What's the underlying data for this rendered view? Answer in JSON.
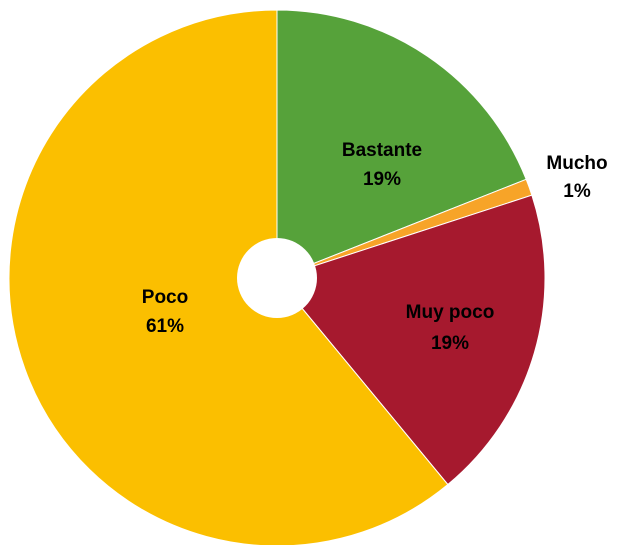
{
  "chart_data": {
    "type": "pie",
    "donut_hole": true,
    "title": "",
    "legend": "none",
    "categories": [
      "Bastante",
      "Mucho",
      "Muy poco",
      "Poco"
    ],
    "values": [
      19,
      1,
      19,
      61
    ],
    "labels": [
      "19%",
      "1%",
      "19%",
      "61%"
    ],
    "colors": [
      "#56a23a",
      "#f7a428",
      "#a6192e",
      "#fbbf00"
    ],
    "start_angle_deg": 0,
    "direction": "clockwise"
  }
}
